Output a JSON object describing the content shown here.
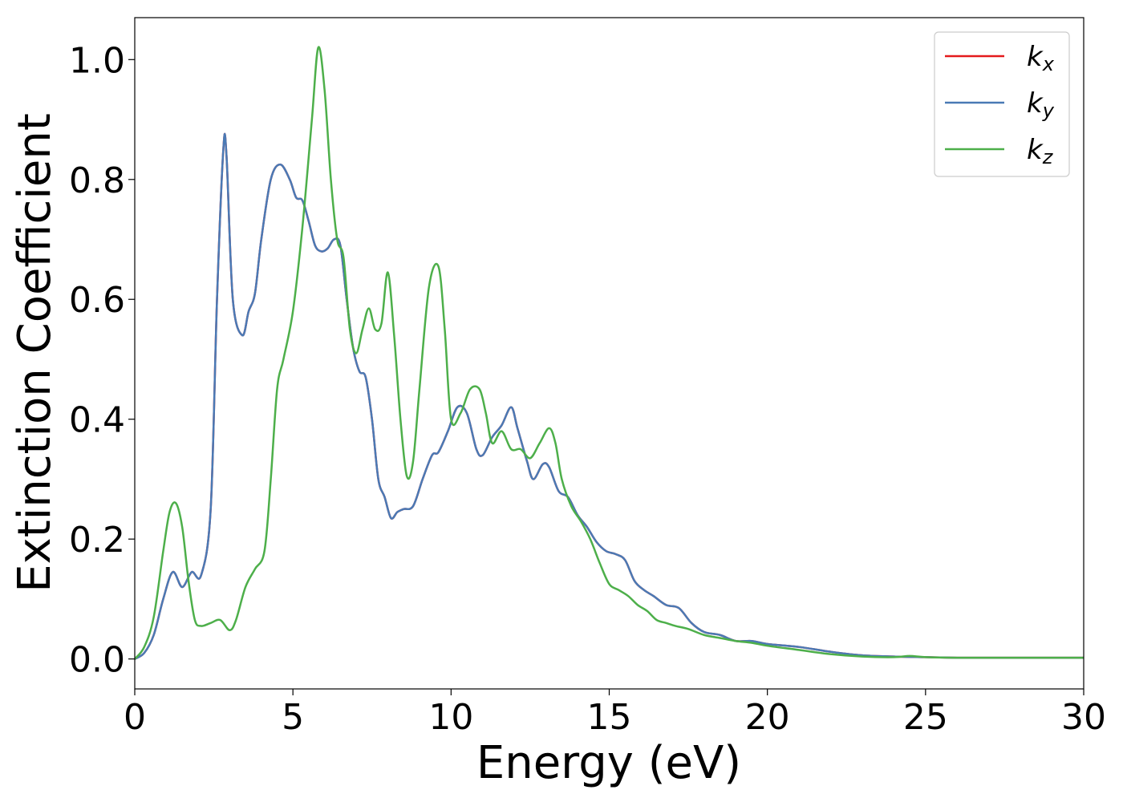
{
  "chart_data": {
    "type": "line",
    "xlabel": "Energy (eV)",
    "ylabel": "Extinction Coefficient",
    "xlim": [
      0,
      30
    ],
    "ylim": [
      -0.05,
      1.07
    ],
    "xticks": [
      0,
      5,
      10,
      15,
      20,
      25,
      30
    ],
    "xtick_labels": [
      "0",
      "5",
      "10",
      "15",
      "20",
      "25",
      "30"
    ],
    "yticks": [
      0.0,
      0.2,
      0.4,
      0.6,
      0.8,
      1.0
    ],
    "ytick_labels": [
      "0.0",
      "0.2",
      "0.4",
      "0.6",
      "0.8",
      "1.0"
    ],
    "grid": false,
    "legend_position": "top-right",
    "series": [
      {
        "name": "k_x",
        "legend_base": "k",
        "legend_sub": "x",
        "color": "#e41a1c",
        "x": [
          0,
          0.3,
          0.6,
          0.9,
          1.2,
          1.5,
          1.8,
          2.1,
          2.4,
          2.6,
          2.8,
          2.9,
          3.1,
          3.4,
          3.6,
          3.8,
          4.0,
          4.3,
          4.6,
          4.9,
          5.1,
          5.3,
          5.5,
          5.7,
          5.9,
          6.1,
          6.3,
          6.5,
          6.7,
          6.9,
          7.1,
          7.3,
          7.5,
          7.7,
          7.9,
          8.1,
          8.3,
          8.5,
          8.8,
          9.1,
          9.4,
          9.6,
          9.9,
          10.2,
          10.5,
          10.8,
          11.0,
          11.3,
          11.6,
          11.9,
          12.1,
          12.4,
          12.6,
          12.9,
          13.1,
          13.4,
          13.7,
          14.0,
          14.3,
          14.6,
          14.9,
          15.2,
          15.5,
          15.8,
          16.1,
          16.4,
          16.8,
          17.2,
          17.6,
          18.0,
          18.5,
          19.0,
          19.5,
          20.0,
          21.0,
          22.0,
          23.0,
          24.0,
          25.0,
          26.0,
          27.0,
          28.0,
          29.0,
          30.0
        ],
        "values": [
          0.0,
          0.01,
          0.04,
          0.1,
          0.145,
          0.12,
          0.145,
          0.14,
          0.25,
          0.6,
          0.85,
          0.84,
          0.6,
          0.54,
          0.58,
          0.61,
          0.7,
          0.8,
          0.825,
          0.8,
          0.77,
          0.765,
          0.73,
          0.69,
          0.68,
          0.685,
          0.7,
          0.69,
          0.6,
          0.52,
          0.48,
          0.47,
          0.4,
          0.3,
          0.27,
          0.235,
          0.245,
          0.25,
          0.255,
          0.3,
          0.34,
          0.345,
          0.38,
          0.42,
          0.41,
          0.35,
          0.34,
          0.37,
          0.39,
          0.42,
          0.385,
          0.33,
          0.3,
          0.325,
          0.32,
          0.28,
          0.27,
          0.24,
          0.22,
          0.195,
          0.18,
          0.175,
          0.165,
          0.13,
          0.115,
          0.105,
          0.09,
          0.085,
          0.06,
          0.045,
          0.04,
          0.03,
          0.03,
          0.025,
          0.02,
          0.012,
          0.006,
          0.004,
          0.003,
          0.002,
          0.002,
          0.002,
          0.002,
          0.002
        ]
      },
      {
        "name": "k_y",
        "legend_base": "k",
        "legend_sub": "y",
        "color": "#4a7ab5",
        "x": [
          0,
          0.3,
          0.6,
          0.9,
          1.2,
          1.5,
          1.8,
          2.1,
          2.4,
          2.6,
          2.8,
          2.9,
          3.1,
          3.4,
          3.6,
          3.8,
          4.0,
          4.3,
          4.6,
          4.9,
          5.1,
          5.3,
          5.5,
          5.7,
          5.9,
          6.1,
          6.3,
          6.5,
          6.7,
          6.9,
          7.1,
          7.3,
          7.5,
          7.7,
          7.9,
          8.1,
          8.3,
          8.5,
          8.8,
          9.1,
          9.4,
          9.6,
          9.9,
          10.2,
          10.5,
          10.8,
          11.0,
          11.3,
          11.6,
          11.9,
          12.1,
          12.4,
          12.6,
          12.9,
          13.1,
          13.4,
          13.7,
          14.0,
          14.3,
          14.6,
          14.9,
          15.2,
          15.5,
          15.8,
          16.1,
          16.4,
          16.8,
          17.2,
          17.6,
          18.0,
          18.5,
          19.0,
          19.5,
          20.0,
          21.0,
          22.0,
          23.0,
          24.0,
          25.0,
          26.0,
          27.0,
          28.0,
          29.0,
          30.0
        ],
        "values": [
          0.0,
          0.01,
          0.04,
          0.1,
          0.145,
          0.12,
          0.145,
          0.14,
          0.25,
          0.6,
          0.85,
          0.84,
          0.6,
          0.54,
          0.58,
          0.61,
          0.7,
          0.8,
          0.825,
          0.8,
          0.77,
          0.765,
          0.73,
          0.69,
          0.68,
          0.685,
          0.7,
          0.69,
          0.6,
          0.52,
          0.48,
          0.47,
          0.4,
          0.3,
          0.27,
          0.235,
          0.245,
          0.25,
          0.255,
          0.3,
          0.34,
          0.345,
          0.38,
          0.42,
          0.41,
          0.35,
          0.34,
          0.37,
          0.39,
          0.42,
          0.385,
          0.33,
          0.3,
          0.325,
          0.32,
          0.28,
          0.27,
          0.24,
          0.22,
          0.195,
          0.18,
          0.175,
          0.165,
          0.13,
          0.115,
          0.105,
          0.09,
          0.085,
          0.06,
          0.045,
          0.04,
          0.03,
          0.03,
          0.025,
          0.02,
          0.012,
          0.006,
          0.004,
          0.003,
          0.002,
          0.002,
          0.002,
          0.002,
          0.002
        ]
      },
      {
        "name": "k_z",
        "legend_base": "k",
        "legend_sub": "z",
        "color": "#4daf4a",
        "x": [
          0,
          0.3,
          0.6,
          0.9,
          1.1,
          1.3,
          1.5,
          1.7,
          1.9,
          2.1,
          2.4,
          2.7,
          3.0,
          3.2,
          3.5,
          3.8,
          4.1,
          4.3,
          4.5,
          4.7,
          5.0,
          5.3,
          5.6,
          5.8,
          6.0,
          6.2,
          6.4,
          6.6,
          6.8,
          7.0,
          7.2,
          7.4,
          7.6,
          7.8,
          8.0,
          8.2,
          8.4,
          8.6,
          8.8,
          9.0,
          9.3,
          9.6,
          9.8,
          10.0,
          10.3,
          10.6,
          10.9,
          11.1,
          11.3,
          11.6,
          11.9,
          12.2,
          12.5,
          12.8,
          13.1,
          13.3,
          13.5,
          13.8,
          14.1,
          14.4,
          14.7,
          15.0,
          15.3,
          15.6,
          15.9,
          16.2,
          16.5,
          16.8,
          17.1,
          17.5,
          18.0,
          18.5,
          19.0,
          19.5,
          20.0,
          21.0,
          22.0,
          23.0,
          24.0,
          24.5,
          25.0,
          26.0,
          27.0,
          28.0,
          29.0,
          30.0
        ],
        "values": [
          0.0,
          0.02,
          0.07,
          0.18,
          0.245,
          0.26,
          0.22,
          0.13,
          0.065,
          0.055,
          0.06,
          0.065,
          0.048,
          0.065,
          0.12,
          0.15,
          0.18,
          0.3,
          0.45,
          0.5,
          0.58,
          0.72,
          0.9,
          1.02,
          0.95,
          0.8,
          0.7,
          0.67,
          0.55,
          0.51,
          0.55,
          0.585,
          0.55,
          0.56,
          0.645,
          0.54,
          0.4,
          0.305,
          0.33,
          0.45,
          0.62,
          0.655,
          0.55,
          0.4,
          0.41,
          0.45,
          0.45,
          0.41,
          0.36,
          0.38,
          0.35,
          0.35,
          0.335,
          0.36,
          0.385,
          0.36,
          0.3,
          0.255,
          0.23,
          0.2,
          0.16,
          0.125,
          0.115,
          0.105,
          0.09,
          0.08,
          0.065,
          0.06,
          0.055,
          0.05,
          0.04,
          0.035,
          0.03,
          0.027,
          0.022,
          0.015,
          0.008,
          0.004,
          0.003,
          0.005,
          0.003,
          0.002,
          0.002,
          0.002,
          0.002,
          0.002
        ]
      }
    ]
  }
}
